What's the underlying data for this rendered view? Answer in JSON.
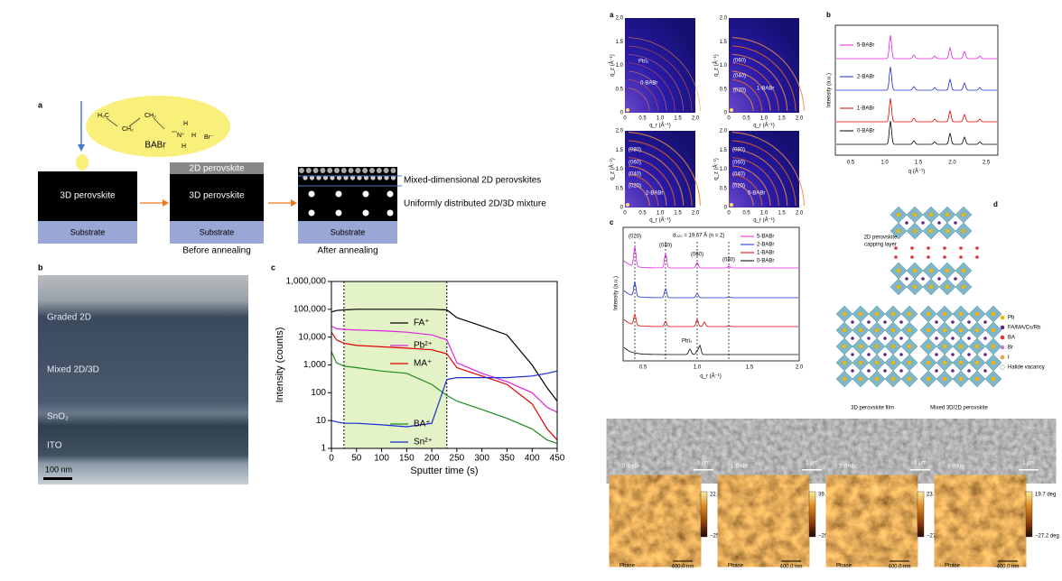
{
  "scheme": {
    "label": "a",
    "molecule": {
      "name": "BABr",
      "groups": [
        "H₃C",
        "CH₂",
        "CH₂",
        "N⁺",
        "H",
        "H",
        "H",
        "Br⁻"
      ]
    },
    "layers": {
      "perovskite_3d": "3D perovskite",
      "perovskite_2d": "2D perovskite",
      "substrate": "Substrate"
    },
    "captions": [
      "Before annealing",
      "After annealing"
    ],
    "annotations": [
      "Mixed-dimensional 2D perovskites",
      "Uniformly distributed 2D/3D mixture"
    ]
  },
  "tem": {
    "label": "b",
    "layers": [
      "Graded 2D",
      "Mixed 2D/3D",
      "SnO₂",
      "ITO"
    ],
    "scale_bar": "100 nm"
  },
  "chart_data": {
    "type": "line",
    "panel_label": "c",
    "x_label": "Sputter time (s)",
    "y_label": "Intensity (counts)",
    "x": [
      0,
      10,
      25,
      50,
      100,
      150,
      200,
      230,
      250,
      300,
      350,
      400,
      430,
      450
    ],
    "series": [
      {
        "name": "FA⁺",
        "color": "#000000",
        "values": [
          80000,
          90000,
          95000,
          100000,
          100000,
          100000,
          100000,
          95000,
          50000,
          25000,
          12000,
          1000,
          150,
          50
        ]
      },
      {
        "name": "Pb²⁺",
        "color": "#e020e0",
        "values": [
          25000,
          20000,
          19000,
          18000,
          17000,
          15000,
          12000,
          8000,
          1200,
          500,
          250,
          100,
          30,
          20
        ]
      },
      {
        "name": "MA⁺",
        "color": "#e00000",
        "values": [
          15000,
          8000,
          6000,
          5000,
          4500,
          4000,
          3500,
          2500,
          800,
          400,
          200,
          40,
          5,
          2
        ]
      },
      {
        "name": "BA⁺",
        "color": "#1a8c1a",
        "values": [
          3000,
          1200,
          900,
          800,
          600,
          500,
          200,
          80,
          50,
          25,
          12,
          5,
          2,
          1.5
        ]
      },
      {
        "name": "Sn²⁺",
        "color": "#1a2ad0",
        "values": [
          10,
          9,
          8,
          8,
          7,
          6,
          8,
          300,
          350,
          350,
          350,
          400,
          500,
          600
        ]
      }
    ],
    "highlight": [
      25,
      230
    ],
    "xlim": [
      0,
      450
    ],
    "xticks": [
      0,
      50,
      100,
      150,
      200,
      250,
      300,
      350,
      400,
      450
    ],
    "ylim": [
      1,
      1000000
    ],
    "log_y": true,
    "yticks": [
      1,
      10,
      100,
      {
        "value": 1000,
        "label": "1,000"
      },
      {
        "value": 10000,
        "label": "10,000"
      },
      {
        "value": 100000,
        "label": "100,000"
      },
      {
        "value": 1000000,
        "label": "1,000,000"
      }
    ]
  },
  "giwaxs": {
    "label": "a",
    "axis_ticks": [
      "0",
      "0.5",
      "1.0",
      "1.5",
      "2.0"
    ],
    "y_axis": "q_z (Å⁻¹)",
    "x_axis": "q_r (Å⁻¹)",
    "panels": [
      {
        "sample": "0-BABr",
        "peaks": [
          "PbI₂"
        ]
      },
      {
        "sample": "1-BABr",
        "peaks": [
          "(060)",
          "(040)",
          "(020)"
        ]
      },
      {
        "sample": "2-BABr",
        "peaks": [
          "(080)",
          "(060)",
          "(040)",
          "(020)"
        ]
      },
      {
        "sample": "5-BABr",
        "peaks": [
          "(080)",
          "(060)",
          "(040)",
          "(020)"
        ]
      }
    ]
  },
  "xrd": {
    "label": "b",
    "samples": [
      "5-BABr",
      "2-BABr",
      "1-BABr",
      "0-BABr"
    ],
    "x_ticks": [
      "0.5",
      "1.0",
      "1.5",
      "2.0",
      "2.5"
    ],
    "x_axis": "q (Å⁻¹)",
    "y_axis": "Intensity (a.u.)"
  },
  "xrd_oop": {
    "label": "c",
    "samples": [
      "5-BABr",
      "2-BABr",
      "1-BABr",
      "0-BABr"
    ],
    "peaks": [
      "(020)",
      "(040)",
      "(060)",
      "(080)"
    ],
    "annotation": "d₀₂₀ = 19.67 Å (n = 2)",
    "impurity": "PbI₂",
    "x_ticks": [
      "0.5",
      "1.0",
      "1.5",
      "2.0"
    ],
    "x_axis": "q_r (Å⁻¹)",
    "y_axis": "Intensity (a.u.)"
  },
  "structure": {
    "label": "d",
    "capping": [
      "2D perovskite",
      "capping layer"
    ],
    "film": "3D perovskite film",
    "mixed": "Mixed 3D/2D perovskite",
    "legend": [
      "Pb",
      "FA/MA/Cs/Rb",
      "BA",
      "Br",
      "I",
      "Halide vacancy"
    ]
  },
  "morphology": {
    "label": "e",
    "samples": [
      "0-BABr",
      "1-BABr",
      "2-BABr",
      "5-BABr"
    ],
    "scale_bar": "1 μm",
    "afm": [
      {
        "max": "22.8 deg",
        "min": "−25.5 deg"
      },
      {
        "max": "39.8 deg",
        "min": "−29.5 deg"
      },
      {
        "max": "23.7 deg",
        "min": "−27.6 deg"
      },
      {
        "max": "19.7 deg",
        "min": "−27.2 deg"
      }
    ],
    "channel": "Phase",
    "scan": "400.0 nm"
  }
}
